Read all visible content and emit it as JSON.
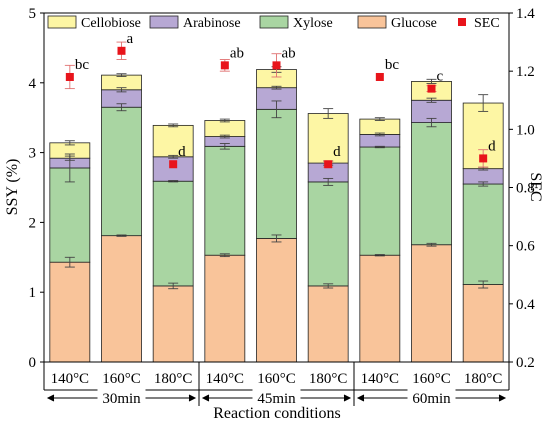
{
  "chart_data": {
    "type": "bar",
    "subtype": "stacked-bar-with-secondary-scatter",
    "xlabel": "Reaction conditions",
    "ylabel": "SSY (%)",
    "y2label": "SEC",
    "ylim": [
      0,
      5
    ],
    "y2lim": [
      0.2,
      1.4
    ],
    "yticks": [
      "0",
      "1",
      "2",
      "3",
      "4",
      "5"
    ],
    "y2ticks": [
      "0.2",
      "0.4",
      "0.6",
      "0.8",
      "1.0",
      "1.2",
      "1.4"
    ],
    "categories": [
      "140°C",
      "160°C",
      "180°C",
      "140°C",
      "160°C",
      "180°C",
      "140°C",
      "160°C",
      "180°C"
    ],
    "groups": [
      {
        "label": "30min",
        "categories": [
          0,
          1,
          2
        ]
      },
      {
        "label": "45min",
        "categories": [
          3,
          4,
          5
        ]
      },
      {
        "label": "60min",
        "categories": [
          6,
          7,
          8
        ]
      }
    ],
    "legend_position": "top",
    "series": [
      {
        "name": "Glucose",
        "color": "#F9C49A",
        "values": [
          1.43,
          1.81,
          1.09,
          1.53,
          1.77,
          1.09,
          1.53,
          1.68,
          1.11
        ],
        "errors": [
          0.07,
          0.01,
          0.04,
          0.02,
          0.05,
          0.03,
          0.01,
          0.02,
          0.05
        ]
      },
      {
        "name": "Xylose",
        "color": "#A9D5A2",
        "values": [
          1.35,
          1.84,
          1.5,
          1.56,
          1.85,
          1.49,
          1.55,
          1.75,
          1.44
        ],
        "errors": [
          0.2,
          0.05,
          0.01,
          0.04,
          0.12,
          0.05,
          0.01,
          0.06,
          0.03
        ]
      },
      {
        "name": "Arabinose",
        "color": "#B7A8D4",
        "values": [
          0.14,
          0.25,
          0.35,
          0.14,
          0.31,
          0.27,
          0.18,
          0.32,
          0.22
        ],
        "errors": [
          0.03,
          0.03,
          0.02,
          0.02,
          0.02,
          0.03,
          0.02,
          0.03,
          0.02
        ]
      },
      {
        "name": "Cellobiose",
        "color": "#FDF6A4",
        "values": [
          0.22,
          0.21,
          0.45,
          0.23,
          0.26,
          0.71,
          0.22,
          0.27,
          0.94
        ],
        "errors": [
          0.03,
          0.02,
          0.02,
          0.02,
          0.04,
          0.07,
          0.02,
          0.03,
          0.12
        ]
      }
    ],
    "sec": {
      "name": "SEC",
      "color": "#E8141B",
      "values": [
        1.18,
        1.27,
        0.88,
        1.22,
        1.22,
        0.88,
        1.18,
        1.14,
        0.9
      ],
      "errors": [
        0.04,
        0.03,
        0.0,
        0.02,
        0.04,
        0.01,
        0.0,
        0.01,
        0.03
      ],
      "letters": [
        "bc",
        "a",
        "d",
        "ab",
        "ab",
        "d",
        "bc",
        "c",
        "d"
      ]
    }
  }
}
